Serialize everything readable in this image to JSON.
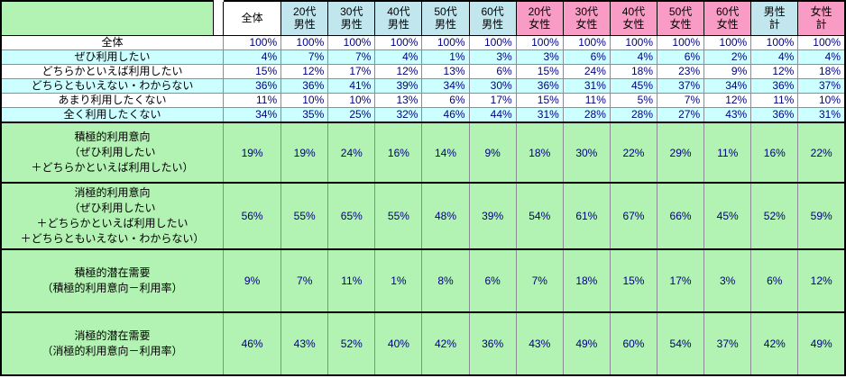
{
  "colors": {
    "green": "#b2f2b2",
    "cyan": "#ccffff",
    "male_header": "#c2e6ee",
    "female_header": "#f99cc5",
    "value_text": "#000080",
    "grid_line": "#8c8c94",
    "border": "#000000"
  },
  "chart_data": {
    "type": "table",
    "corner": "",
    "columns": [
      {
        "label": "全体",
        "group": "total"
      },
      {
        "label": "20代\n男性",
        "group": "male"
      },
      {
        "label": "30代\n男性",
        "group": "male"
      },
      {
        "label": "40代\n男性",
        "group": "male"
      },
      {
        "label": "50代\n男性",
        "group": "male"
      },
      {
        "label": "60代\n男性",
        "group": "male"
      },
      {
        "label": "20代\n女性",
        "group": "female"
      },
      {
        "label": "30代\n女性",
        "group": "female"
      },
      {
        "label": "40代\n女性",
        "group": "female"
      },
      {
        "label": "50代\n女性",
        "group": "female"
      },
      {
        "label": "60代\n女性",
        "group": "female"
      },
      {
        "label": "男性\n計",
        "group": "male"
      },
      {
        "label": "女性\n計",
        "group": "female"
      }
    ],
    "rows": [
      {
        "label": "全体",
        "type": "plain",
        "values": [
          "100%",
          "100%",
          "100%",
          "100%",
          "100%",
          "100%",
          "100%",
          "100%",
          "100%",
          "100%",
          "100%",
          "100%",
          "100%"
        ]
      },
      {
        "label": "ぜひ利用したい",
        "type": "cyan",
        "values": [
          "4%",
          "7%",
          "7%",
          "4%",
          "1%",
          "3%",
          "3%",
          "6%",
          "4%",
          "6%",
          "2%",
          "4%",
          "4%"
        ]
      },
      {
        "label": "どちらかといえば利用したい",
        "type": "plain",
        "values": [
          "15%",
          "12%",
          "17%",
          "12%",
          "13%",
          "6%",
          "15%",
          "24%",
          "18%",
          "23%",
          "9%",
          "12%",
          "18%"
        ]
      },
      {
        "label": "どちらともいえない・わからない",
        "type": "cyan",
        "values": [
          "36%",
          "36%",
          "41%",
          "39%",
          "34%",
          "30%",
          "36%",
          "31%",
          "45%",
          "37%",
          "34%",
          "36%",
          "37%"
        ]
      },
      {
        "label": "あまり利用したくない",
        "type": "plain",
        "values": [
          "11%",
          "10%",
          "10%",
          "13%",
          "6%",
          "17%",
          "15%",
          "11%",
          "5%",
          "7%",
          "12%",
          "11%",
          "10%"
        ]
      },
      {
        "label": "全く利用したくない",
        "type": "cyan",
        "values": [
          "34%",
          "35%",
          "25%",
          "32%",
          "46%",
          "44%",
          "31%",
          "28%",
          "28%",
          "27%",
          "43%",
          "36%",
          "31%"
        ]
      },
      {
        "label": "積極的利用意向\n（ぜひ利用したい\n＋どちらかといえば利用したい）",
        "type": "summary",
        "values": [
          "19%",
          "19%",
          "24%",
          "16%",
          "14%",
          "9%",
          "18%",
          "30%",
          "22%",
          "29%",
          "11%",
          "16%",
          "22%"
        ]
      },
      {
        "label": "消極的利用意向\n（ぜひ利用したい\n＋どちらかといえば利用したい\n＋どちらともいえない・わからない）",
        "type": "summary",
        "values": [
          "56%",
          "55%",
          "65%",
          "55%",
          "48%",
          "39%",
          "54%",
          "61%",
          "67%",
          "66%",
          "45%",
          "52%",
          "59%"
        ]
      },
      {
        "label": "積極的潜在需要\n（積極的利用意向－利用率）",
        "type": "summary",
        "values": [
          "9%",
          "7%",
          "11%",
          "1%",
          "8%",
          "6%",
          "7%",
          "18%",
          "15%",
          "17%",
          "3%",
          "6%",
          "12%"
        ]
      },
      {
        "label": "消極的潜在需要\n（消極的利用意向－利用率）",
        "type": "summary",
        "values": [
          "46%",
          "43%",
          "52%",
          "40%",
          "42%",
          "36%",
          "43%",
          "49%",
          "60%",
          "54%",
          "37%",
          "42%",
          "49%"
        ]
      }
    ]
  }
}
